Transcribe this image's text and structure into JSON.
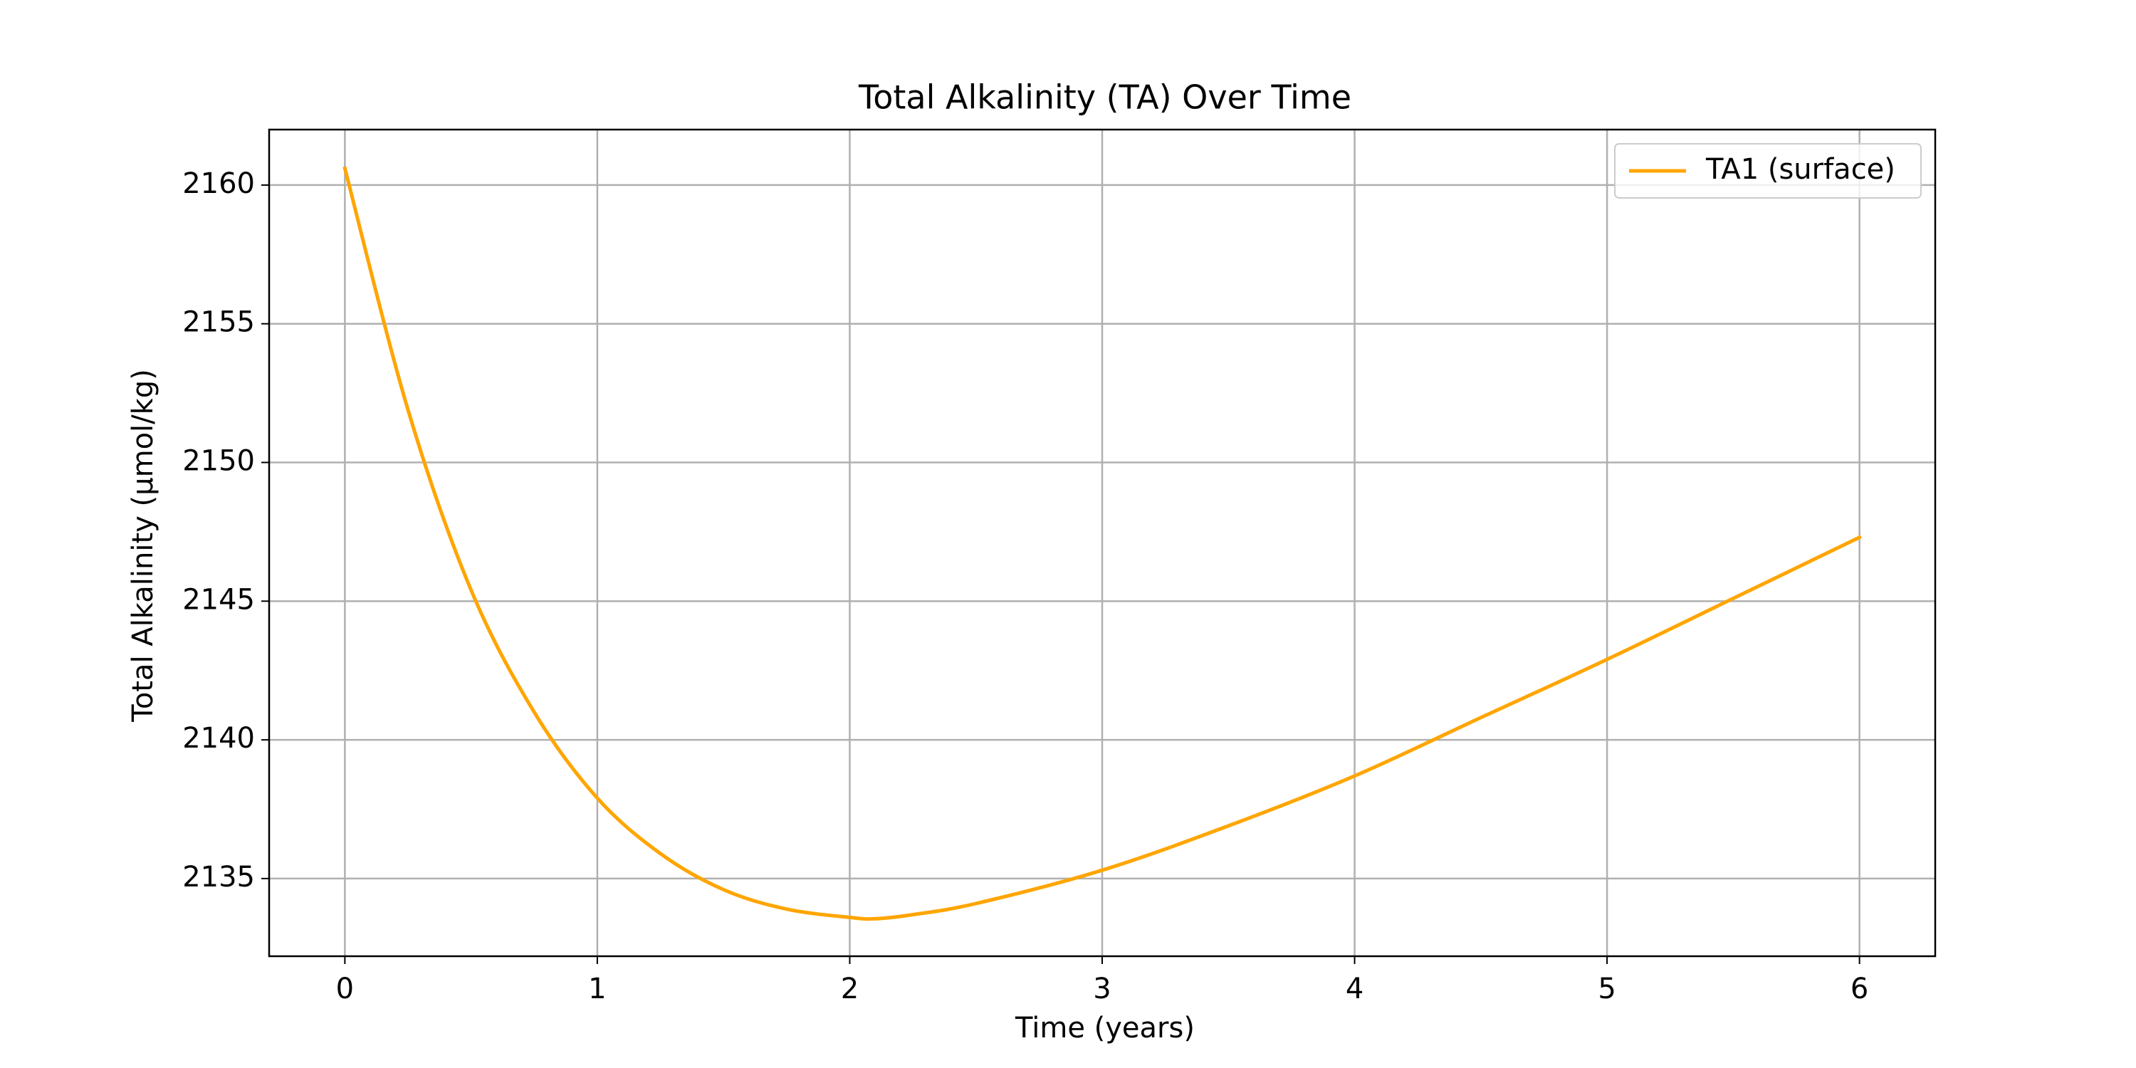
{
  "chart_data": {
    "type": "line",
    "title": "Total Alkalinity (TA) Over Time",
    "xlabel": "Time (years)",
    "ylabel": "Total Alkalinity (µmol/kg)",
    "xlim": [
      -0.3,
      6.3
    ],
    "ylim": [
      2132.2,
      2162.0
    ],
    "xticks": [
      0,
      1,
      2,
      3,
      4,
      5,
      6
    ],
    "yticks": [
      2135,
      2140,
      2145,
      2150,
      2155,
      2160
    ],
    "grid": true,
    "legend_position": "top-right",
    "series": [
      {
        "name": "TA1 (surface)",
        "color": "#FFA500",
        "x": [
          0,
          0.25,
          0.5,
          0.75,
          1.0,
          1.25,
          1.5,
          1.75,
          2.0,
          2.1,
          2.25,
          2.5,
          3.0,
          3.5,
          4.0,
          4.5,
          5.0,
          5.5,
          6.0
        ],
        "y": [
          2160.6,
          2151.9,
          2145.4,
          2141.0,
          2137.9,
          2135.9,
          2134.6,
          2133.9,
          2133.6,
          2133.55,
          2133.7,
          2134.1,
          2135.3,
          2136.9,
          2138.7,
          2140.8,
          2142.9,
          2145.1,
          2147.3
        ]
      }
    ]
  }
}
